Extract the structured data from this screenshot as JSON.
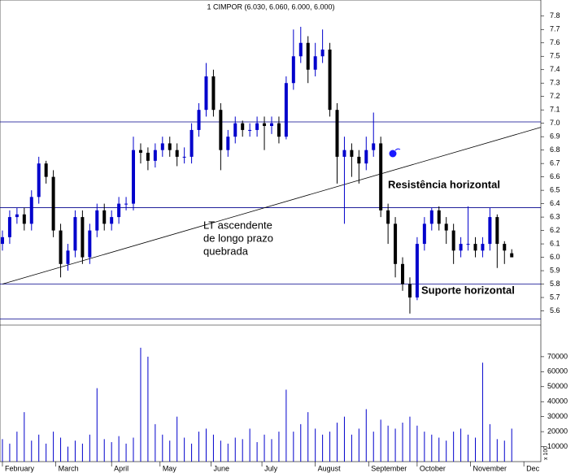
{
  "chart_data": {
    "type": "candlestick",
    "title": "1 CIMPOR (6.030, 6.060, 6.000, 6.000)",
    "x": [
      0,
      3,
      6,
      9,
      12,
      15,
      18,
      21,
      24,
      27,
      30,
      33,
      36,
      39,
      42,
      45,
      48,
      51,
      54,
      57,
      60,
      63,
      66,
      69,
      72,
      75,
      78,
      81,
      84,
      87,
      90,
      93,
      96,
      99,
      102,
      105,
      108,
      111,
      114,
      117,
      120,
      123,
      126,
      129,
      132,
      135,
      138,
      141,
      144,
      147,
      150,
      153,
      156,
      159,
      162,
      165,
      168,
      171,
      174,
      177,
      180,
      183,
      186,
      189,
      192,
      195,
      198,
      201,
      204,
      207,
      210
    ],
    "open": [
      6.1,
      6.15,
      6.3,
      6.32,
      6.25,
      6.45,
      6.7,
      6.6,
      6.2,
      5.95,
      6.05,
      6.3,
      6.0,
      6.2,
      6.35,
      6.25,
      6.3,
      6.4,
      6.4,
      6.8,
      6.78,
      6.72,
      6.8,
      6.85,
      6.8,
      6.75,
      6.75,
      6.95,
      7.1,
      7.35,
      7.1,
      6.8,
      6.9,
      7.0,
      6.95,
      6.95,
      7.0,
      6.98,
      7.0,
      6.9,
      7.3,
      7.5,
      7.6,
      7.4,
      7.5,
      7.55,
      7.1,
      6.75,
      6.8,
      6.75,
      6.7,
      6.8,
      6.85,
      6.35,
      6.25,
      5.95,
      5.8,
      5.7,
      6.1,
      6.25,
      6.35,
      6.25,
      6.2,
      6.05,
      6.1,
      6.1,
      6.05,
      6.1,
      6.3,
      6.1,
      6.03
    ],
    "high": [
      6.2,
      6.35,
      6.37,
      6.37,
      6.5,
      6.75,
      6.72,
      6.65,
      6.25,
      6.1,
      6.35,
      6.35,
      6.25,
      6.4,
      6.4,
      6.35,
      6.45,
      6.45,
      6.9,
      6.85,
      6.82,
      6.85,
      6.9,
      6.9,
      6.85,
      6.82,
      7.0,
      7.15,
      7.45,
      7.4,
      7.15,
      6.95,
      7.05,
      7.02,
      7.0,
      7.05,
      7.05,
      7.05,
      7.05,
      7.35,
      7.7,
      7.72,
      7.65,
      7.6,
      7.7,
      7.6,
      7.15,
      6.9,
      6.85,
      6.8,
      6.9,
      7.08,
      6.9,
      6.4,
      6.3,
      6.0,
      5.85,
      6.15,
      6.3,
      6.37,
      6.38,
      6.3,
      6.25,
      6.15,
      6.38,
      6.15,
      6.15,
      6.37,
      6.32,
      6.12,
      6.06
    ],
    "low": [
      6.05,
      6.1,
      6.25,
      6.2,
      6.2,
      6.4,
      6.55,
      6.15,
      5.85,
      5.9,
      6.0,
      5.95,
      5.95,
      6.15,
      6.2,
      6.2,
      6.25,
      6.35,
      6.35,
      6.7,
      6.65,
      6.67,
      6.75,
      6.75,
      6.68,
      6.7,
      6.7,
      6.9,
      7.05,
      7.05,
      6.65,
      6.75,
      6.85,
      6.9,
      6.9,
      6.9,
      6.8,
      6.92,
      6.85,
      6.88,
      7.25,
      7.45,
      7.3,
      7.35,
      7.45,
      7.05,
      6.55,
      6.25,
      6.6,
      6.55,
      6.65,
      6.75,
      6.3,
      6.1,
      5.85,
      5.75,
      5.58,
      5.68,
      6.05,
      6.2,
      6.2,
      6.1,
      5.95,
      6.0,
      6.05,
      6.0,
      6.0,
      6.05,
      5.92,
      5.95,
      6.0
    ],
    "close": [
      6.15,
      6.3,
      6.32,
      6.25,
      6.45,
      6.7,
      6.6,
      6.2,
      5.95,
      6.05,
      6.3,
      6.0,
      6.2,
      6.35,
      6.25,
      6.3,
      6.4,
      6.4,
      6.8,
      6.78,
      6.72,
      6.8,
      6.85,
      6.8,
      6.75,
      6.75,
      6.95,
      7.1,
      7.35,
      7.1,
      6.8,
      6.9,
      7.0,
      6.95,
      6.95,
      7.0,
      6.98,
      7.0,
      6.9,
      7.3,
      7.5,
      7.6,
      7.4,
      7.5,
      7.55,
      7.1,
      6.75,
      6.8,
      6.75,
      6.7,
      6.8,
      6.85,
      6.35,
      6.25,
      5.95,
      5.8,
      5.7,
      6.1,
      6.25,
      6.35,
      6.25,
      6.2,
      6.05,
      6.1,
      6.1,
      6.05,
      6.1,
      6.3,
      6.1,
      6.05,
      6.0
    ],
    "up_color": "#0000cc",
    "down_color": "#000000",
    "xlim": [
      -1,
      222
    ],
    "xticks": [
      {
        "value": 0,
        "label": "February"
      },
      {
        "value": 22,
        "label": "March"
      },
      {
        "value": 45,
        "label": "April"
      },
      {
        "value": 65,
        "label": "May"
      },
      {
        "value": 86,
        "label": "June"
      },
      {
        "value": 107,
        "label": "July"
      },
      {
        "value": 129,
        "label": "August"
      },
      {
        "value": 151,
        "label": "September"
      },
      {
        "value": 171,
        "label": "October"
      },
      {
        "value": 193,
        "label": "November"
      },
      {
        "value": 215,
        "label": "Dec"
      }
    ],
    "ylim": [
      5.5,
      7.92
    ],
    "yticks": [
      5.6,
      5.7,
      5.8,
      5.9,
      {
        "value": 6,
        "label": "6.0"
      },
      6.1,
      6.2,
      6.3,
      6.4,
      6.5,
      6.6,
      6.7,
      6.8,
      6.9,
      {
        "value": 7,
        "label": "7.0"
      },
      7.1,
      7.2,
      7.3,
      7.4,
      7.5,
      7.6,
      7.7,
      7.8
    ],
    "hlines": [
      7.01,
      6.37,
      5.8,
      5.54
    ],
    "hline_color": "#00008b",
    "trendline": {
      "x": [
        0,
        222
      ],
      "y": [
        5.8,
        6.97
      ],
      "color": "#000000"
    },
    "annotations": [
      {
        "lines": [
          "Resistência horizontal"
        ],
        "color": "#1a1acc"
      },
      {
        "lines": [
          "Suporte horizontal"
        ],
        "color": "#1a1acc"
      },
      {
        "lines": [
          "LT ascendente",
          "de longo prazo",
          "quebrada"
        ],
        "color": "#000000"
      }
    ],
    "volume": {
      "values": [
        15000,
        12000,
        20000,
        33000,
        14000,
        18000,
        12000,
        20000,
        16000,
        10000,
        14000,
        12000,
        18000,
        49000,
        15000,
        13000,
        17000,
        12000,
        16000,
        76000,
        70000,
        25000,
        18000,
        14000,
        30000,
        16000,
        12000,
        20000,
        22000,
        18000,
        14000,
        12000,
        16000,
        15000,
        22000,
        13000,
        18000,
        15000,
        20000,
        48000,
        20000,
        25000,
        33000,
        22000,
        18000,
        20000,
        26000,
        30000,
        18000,
        22000,
        35000,
        20000,
        28000,
        24000,
        22000,
        26000,
        30000,
        24000,
        20000,
        18000,
        16000,
        14000,
        20000,
        22000,
        18000,
        16000,
        66000,
        25000,
        15000,
        14000,
        22000
      ],
      "color": "#0000cc",
      "ylim": [
        0,
        90000
      ],
      "yticks": [
        10000,
        20000,
        30000,
        40000,
        50000,
        60000,
        70000
      ],
      "unit_label": "x 100"
    }
  }
}
